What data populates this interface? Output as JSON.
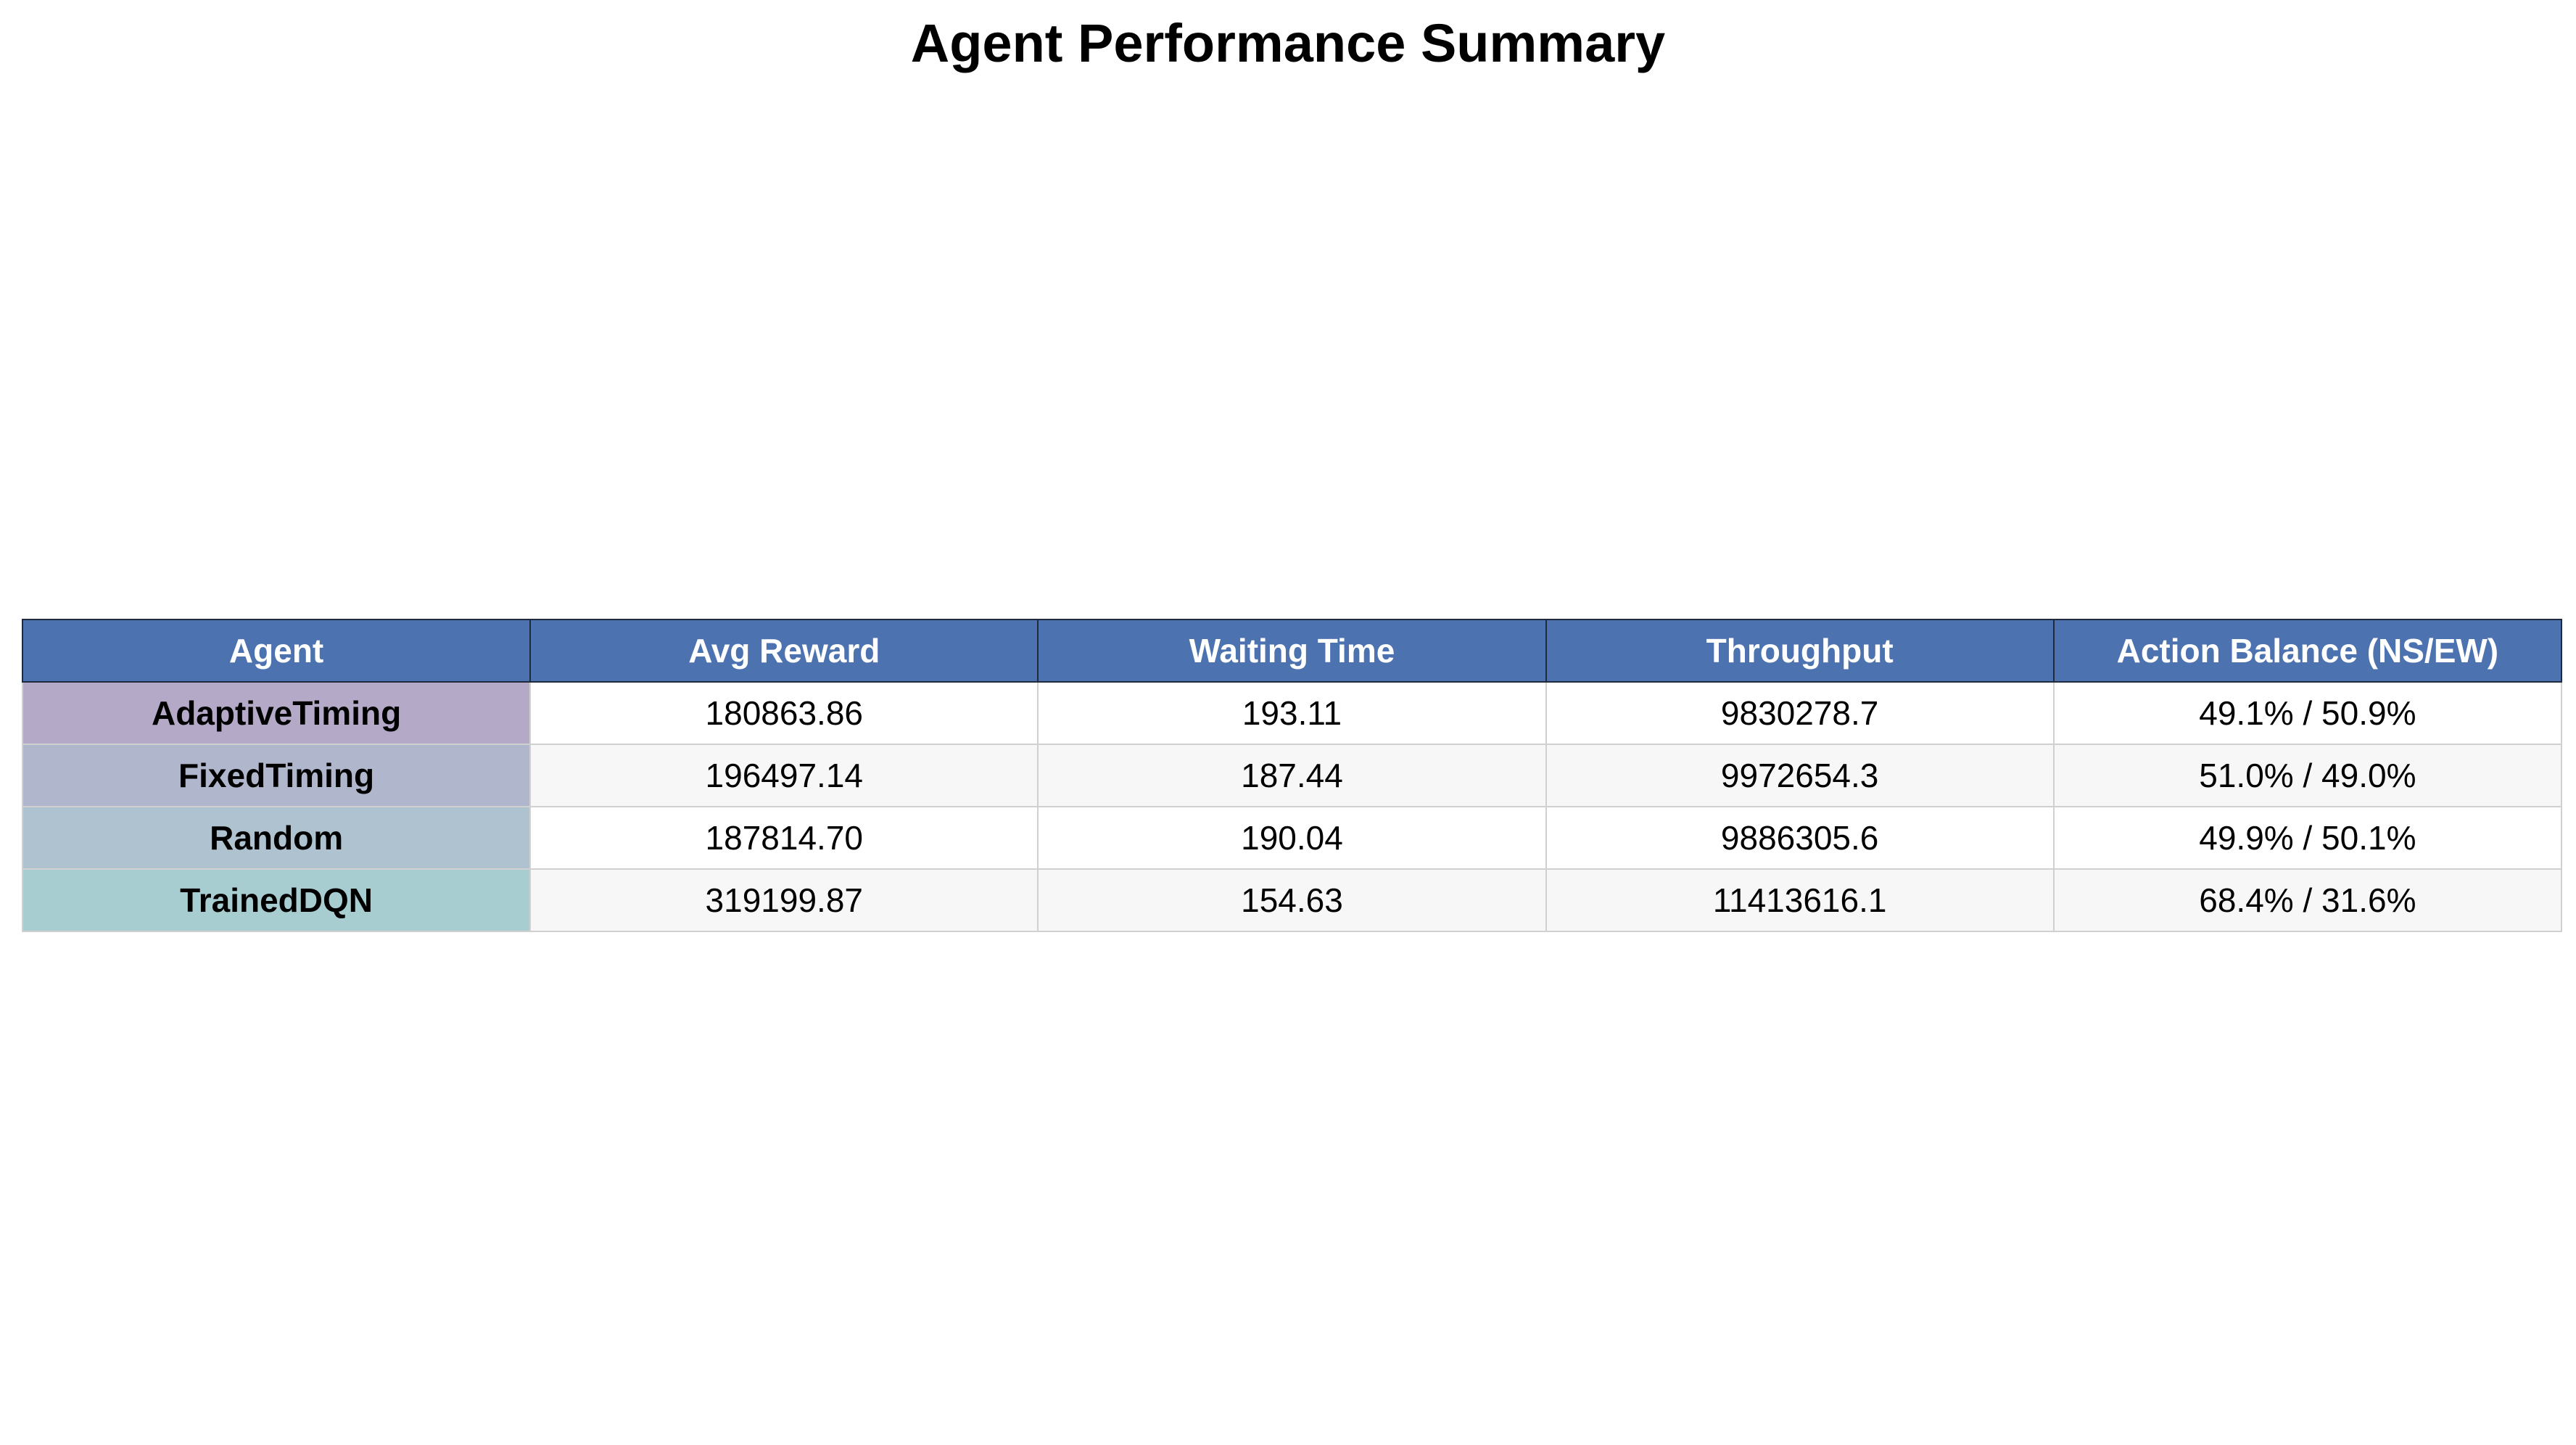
{
  "chart_data": {
    "type": "table",
    "title": "Agent Performance Summary",
    "columns": [
      "Agent",
      "Avg Reward",
      "Waiting Time",
      "Throughput",
      "Action Balance (NS/EW)"
    ],
    "rows": [
      [
        "AdaptiveTiming",
        "180863.86",
        "193.11",
        "9830278.7",
        "49.1% / 50.9%"
      ],
      [
        "FixedTiming",
        "196497.14",
        "187.44",
        "9972654.3",
        "51.0% / 49.0%"
      ],
      [
        "Random",
        "187814.70",
        "190.04",
        "9886305.6",
        "49.9% / 50.1%"
      ],
      [
        "TrainedDQN",
        "319199.87",
        "154.63",
        "11413616.1",
        "68.4% / 31.6%"
      ]
    ],
    "header_color": "#4c72b0",
    "agent_colors": [
      "#b4aac8",
      "#b0b6cc",
      "#aec3cf",
      "#a8cdd0"
    ]
  }
}
